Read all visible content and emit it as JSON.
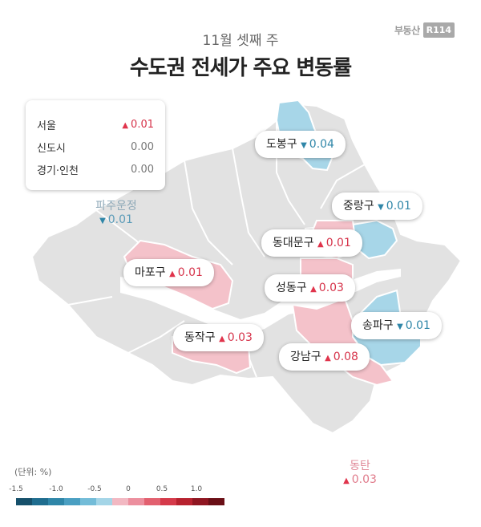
{
  "brand": {
    "name": "부동산",
    "badge": "R114"
  },
  "subtitle": "11월 셋째 주",
  "title": "수도권 전세가 주요 변동률",
  "summary": [
    {
      "name": "서울",
      "value": "0.01",
      "direction": "up"
    },
    {
      "name": "신도시",
      "value": "0.00",
      "direction": "flat"
    },
    {
      "name": "경기·인천",
      "value": "0.00",
      "direction": "flat"
    }
  ],
  "outside_regions": {
    "paju": {
      "name": "파주운정",
      "value": "0.01",
      "direction": "down"
    },
    "dongtan": {
      "name": "동탄",
      "value": "0.03",
      "direction": "up"
    }
  },
  "districts": {
    "dobong": {
      "name": "도봉구",
      "value": "0.04",
      "direction": "down"
    },
    "jungnang": {
      "name": "중랑구",
      "value": "0.01",
      "direction": "down"
    },
    "dongdaemun": {
      "name": "동대문구",
      "value": "0.01",
      "direction": "up"
    },
    "mapo": {
      "name": "마포구",
      "value": "0.01",
      "direction": "up"
    },
    "seongdong": {
      "name": "성동구",
      "value": "0.03",
      "direction": "up"
    },
    "songpa": {
      "name": "송파구",
      "value": "0.01",
      "direction": "down"
    },
    "dongjak": {
      "name": "동작구",
      "value": "0.03",
      "direction": "up"
    },
    "gangnam": {
      "name": "강남구",
      "value": "0.08",
      "direction": "up"
    }
  },
  "legend": {
    "unit": "(단위: %)",
    "ticks": [
      "-1.5",
      "-1.0",
      "-0.5",
      "0",
      "0.5",
      "1.0"
    ],
    "colors": [
      "#16506b",
      "#1f6d8f",
      "#2f86a8",
      "#4a9fc2",
      "#73bcd8",
      "#a4d5e7",
      "#f2b8c2",
      "#ec8f9e",
      "#e2606f",
      "#d53a4a",
      "#b7222f",
      "#8f1621",
      "#6a0f16"
    ]
  }
}
